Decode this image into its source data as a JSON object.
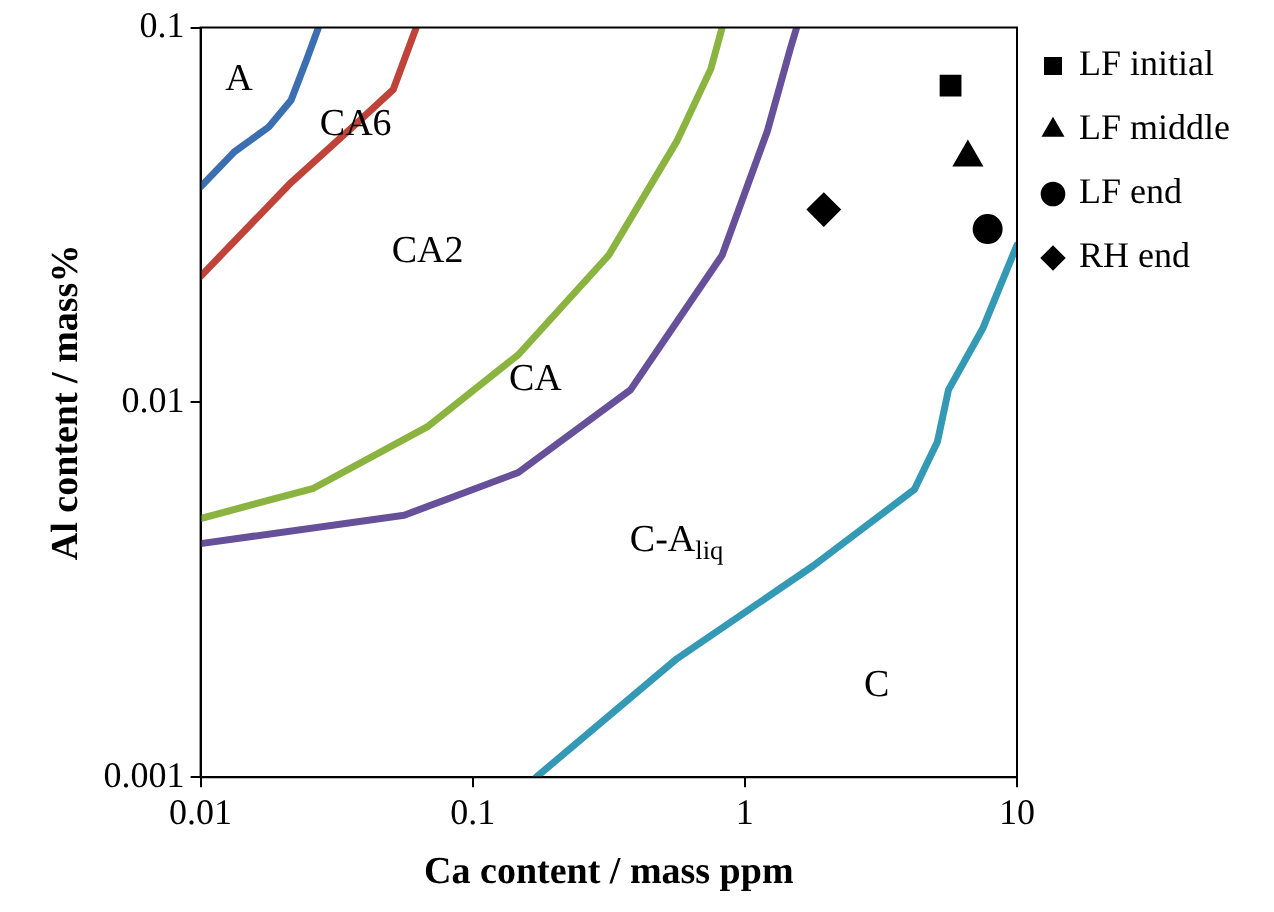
{
  "chart_data": {
    "type": "line",
    "xlabel": "Ca content / mass ppm",
    "ylabel": "Al content / mass%",
    "log": "xy",
    "xlim": [
      0.01,
      10
    ],
    "ylim": [
      0.001,
      0.1
    ],
    "xticks": [
      0.01,
      0.1,
      1,
      10
    ],
    "yticks": [
      0.001,
      0.01,
      0.1
    ],
    "grid": false,
    "legend": "top right",
    "line_style": "solid",
    "series": [
      {
        "color": "#3b6fb1",
        "marker": "none",
        "x": [
          0.01,
          0.0133,
          0.0178,
          0.0215,
          0.0246,
          0.0271
        ],
        "values": [
          0.0376,
          0.0466,
          0.0543,
          0.064,
          0.0826,
          0.1
        ]
      },
      {
        "color": "#c0433a",
        "marker": "none",
        "x": [
          0.01,
          0.0215,
          0.0383,
          0.051,
          0.0562,
          0.062
        ],
        "values": [
          0.0217,
          0.0386,
          0.0564,
          0.0683,
          0.0826,
          0.1
        ]
      },
      {
        "color": "#8ab43f",
        "marker": "none",
        "x": [
          0.01,
          0.026,
          0.068,
          0.147,
          0.316,
          0.562,
          0.75,
          0.825
        ],
        "values": [
          0.0049,
          0.0059,
          0.0086,
          0.0134,
          0.0247,
          0.0497,
          0.0776,
          0.1
        ]
      },
      {
        "color": "#66509a",
        "marker": "none",
        "x": [
          0.01,
          0.056,
          0.147,
          0.38,
          0.825,
          1.21,
          1.47,
          1.55
        ],
        "values": [
          0.0042,
          0.005,
          0.0065,
          0.0108,
          0.0247,
          0.053,
          0.088,
          0.1
        ]
      },
      {
        "color": "#3399b5",
        "marker": "none",
        "x": [
          0.171,
          0.562,
          1.78,
          4.2,
          5.1,
          5.6,
          7.5,
          10
        ],
        "values": [
          0.001,
          0.00207,
          0.00366,
          0.00586,
          0.00785,
          0.0108,
          0.0158,
          0.0263
        ]
      },
      {
        "type": "scatter",
        "name": "LF initial",
        "color": "#000000",
        "marker": "square",
        "x": [
          5.7
        ],
        "values": [
          0.07
        ]
      },
      {
        "type": "scatter",
        "name": "LF middle",
        "color": "#000000",
        "marker": "triangle",
        "x": [
          6.6
        ],
        "values": [
          0.045
        ]
      },
      {
        "type": "scatter",
        "name": "LF end",
        "color": "#000000",
        "marker": "circle",
        "x": [
          7.8
        ],
        "values": [
          0.029
        ]
      },
      {
        "type": "scatter",
        "name": "RH end",
        "color": "#000000",
        "marker": "diamond",
        "x": [
          1.95
        ],
        "values": [
          0.0327
        ]
      }
    ],
    "annotations": [
      "A",
      "CA6",
      "CA2",
      "CA",
      "C-A$_{liq}$",
      "C"
    ]
  }
}
